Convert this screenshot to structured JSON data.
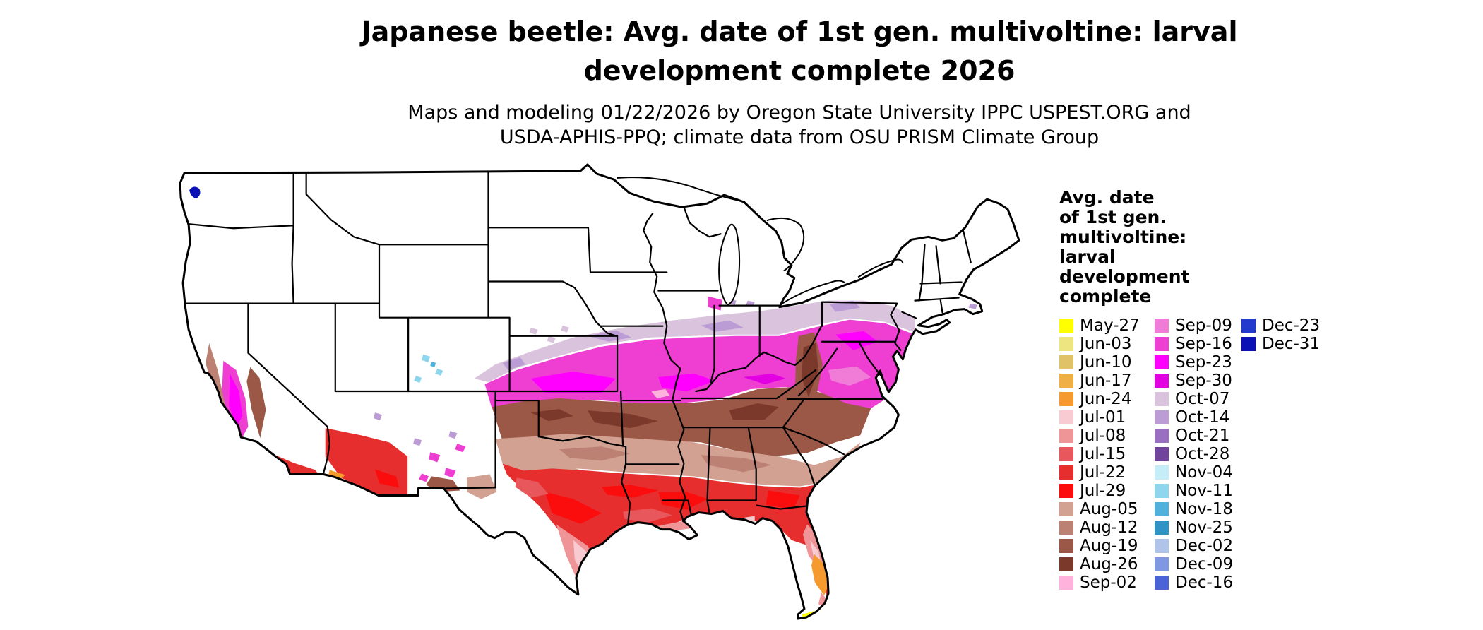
{
  "title": "Japanese beetle: Avg. date of 1st gen. multivoltine: larval\ndevelopment complete 2026",
  "subtitle": "Maps and modeling 01/22/2026 by Oregon State University IPPC USPEST.ORG and\nUSDA-APHIS-PPQ; climate data from OSU PRISM Climate Group",
  "map": {
    "land_color": "#FFFFFF",
    "line_color": "#000000"
  },
  "legend": {
    "title": "Avg. date\nof 1st gen.\nmultivoltine:\nlarval\ndevelopment\ncomplete",
    "columns": [
      [
        {
          "label": "May-27",
          "color": "#FFFF00"
        },
        {
          "label": "Jun-03",
          "color": "#EDE680"
        },
        {
          "label": "Jun-10",
          "color": "#E0C268"
        },
        {
          "label": "Jun-17",
          "color": "#EFAF45"
        },
        {
          "label": "Jun-24",
          "color": "#F49A2E"
        },
        {
          "label": "Jul-01",
          "color": "#F7CBD1"
        },
        {
          "label": "Jul-08",
          "color": "#EF9598"
        },
        {
          "label": "Jul-15",
          "color": "#E8575C"
        },
        {
          "label": "Jul-22",
          "color": "#E62E2E"
        },
        {
          "label": "Jul-29",
          "color": "#FB0D0D"
        },
        {
          "label": "Aug-05",
          "color": "#D2A192"
        },
        {
          "label": "Aug-12",
          "color": "#BC8172"
        },
        {
          "label": "Aug-19",
          "color": "#9B5847"
        },
        {
          "label": "Aug-26",
          "color": "#7B392B"
        },
        {
          "label": "Sep-02",
          "color": "#FFB3DC"
        }
      ],
      [
        {
          "label": "Sep-09",
          "color": "#F07CD7"
        },
        {
          "label": "Sep-16",
          "color": "#EF3ED2"
        },
        {
          "label": "Sep-23",
          "color": "#FF00FF"
        },
        {
          "label": "Sep-30",
          "color": "#E200E2"
        },
        {
          "label": "Oct-07",
          "color": "#DAC3DD"
        },
        {
          "label": "Oct-14",
          "color": "#BC9CD5"
        },
        {
          "label": "Oct-21",
          "color": "#9A6FC2"
        },
        {
          "label": "Oct-28",
          "color": "#70439C"
        },
        {
          "label": "Nov-04",
          "color": "#C4EDF7"
        },
        {
          "label": "Nov-11",
          "color": "#8ED5EE"
        },
        {
          "label": "Nov-18",
          "color": "#50B1DC"
        },
        {
          "label": "Nov-25",
          "color": "#2F94C5"
        },
        {
          "label": "Dec-02",
          "color": "#B0C4EA"
        },
        {
          "label": "Dec-09",
          "color": "#7F98E1"
        },
        {
          "label": "Dec-16",
          "color": "#4A64D7"
        }
      ],
      [
        {
          "label": "Dec-23",
          "color": "#2439CD"
        },
        {
          "label": "Dec-31",
          "color": "#0A12B5"
        }
      ]
    ]
  }
}
